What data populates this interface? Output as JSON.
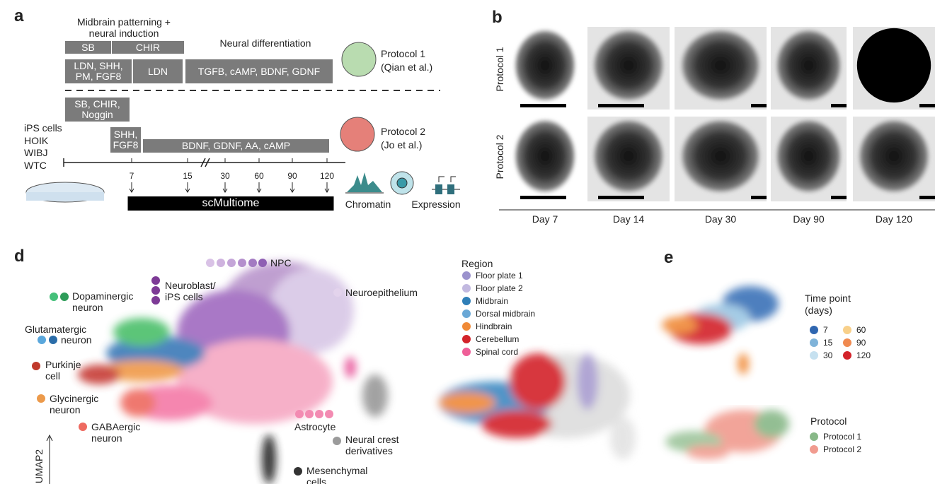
{
  "panel_a": {
    "label": "a",
    "header_lines": [
      "Midbrain patterning +",
      "neural induction"
    ],
    "stage_label": "Neural differentiation",
    "protocol_1": {
      "boxes": [
        [
          "SB"
        ],
        [
          "CHIR"
        ],
        [
          "LDN, SHH,",
          "PM, FGF8"
        ],
        [
          "LDN"
        ],
        [
          "TGFB, cAMP, BDNF, GDNF"
        ]
      ],
      "name": "Protocol 1",
      "citation": "(Qian et al.)"
    },
    "protocol_2": {
      "boxes": [
        [
          "SB, CHIR,",
          "Noggin"
        ],
        [
          "SHH,",
          "FGF8"
        ],
        [
          "BDNF, GDNF, AA, cAMP"
        ]
      ],
      "name": "Protocol 2",
      "citation": "(Jo et al.)"
    },
    "cell_lines": [
      "iPS cells",
      "HOIK",
      "WIBJ",
      "WTC"
    ],
    "timepoints": [
      7,
      15,
      30,
      60,
      90,
      120
    ],
    "assay": "scMultiome",
    "modalities": [
      "Chromatin",
      "Expression"
    ]
  },
  "panel_b": {
    "label": "b",
    "rows": [
      "Protocol 1",
      "Protocol 2"
    ],
    "days": [
      "Day 7",
      "Day 14",
      "Day 30",
      "Day 90",
      "Day 120"
    ]
  },
  "panel_d": {
    "label": "d",
    "clusters": [
      {
        "lines": [
          "NPC"
        ]
      },
      {
        "lines": [
          "Neuroblast/",
          "iPS cells"
        ]
      },
      {
        "lines": [
          "Neuroepithelium"
        ]
      },
      {
        "lines": [
          "Dopaminergic",
          "neuron"
        ]
      },
      {
        "lines": [
          "Glutamatergic",
          "neuron"
        ]
      },
      {
        "lines": [
          "Purkinje",
          "cell"
        ]
      },
      {
        "lines": [
          "Glycinergic",
          "neuron"
        ]
      },
      {
        "lines": [
          "GABAergic",
          "neuron"
        ]
      },
      {
        "lines": [
          "Astrocyte"
        ]
      },
      {
        "lines": [
          "Neural crest",
          "derivatives"
        ]
      },
      {
        "lines": [
          "Mesenchymal",
          "cells"
        ]
      }
    ],
    "region_legend": {
      "title": "Region",
      "entries": [
        "Floor plate 1",
        "Floor plate 2",
        "Midbrain",
        "Dorsal midbrain",
        "Hindbrain",
        "Cerebellum",
        "Spinal cord"
      ]
    },
    "axis_label": "UMAP2"
  },
  "panel_e": {
    "label": "e",
    "time_legend": {
      "title_lines": [
        "Time point",
        "(days)"
      ],
      "entries": [
        7,
        15,
        30,
        60,
        90,
        120
      ]
    },
    "protocol_legend": {
      "title": "Protocol",
      "entries": [
        "Protocol 1",
        "Protocol 2"
      ]
    }
  }
}
